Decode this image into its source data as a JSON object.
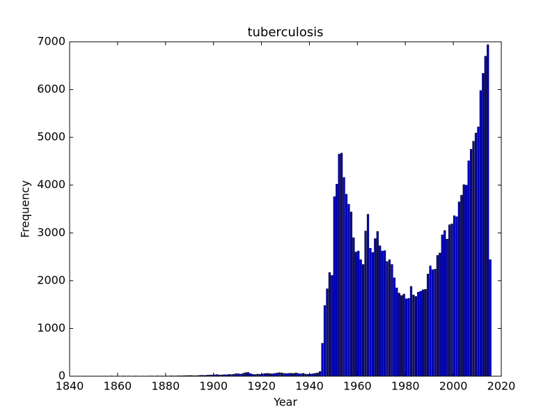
{
  "chart_data": {
    "type": "bar",
    "title": "tuberculosis",
    "x_label": "Year",
    "y_label": "Frequency",
    "color": "#0000c8",
    "edgecolor": "#000000",
    "grid": false,
    "xlim": [
      1840,
      2020
    ],
    "xticks": [
      1840,
      1860,
      1880,
      1900,
      1920,
      1940,
      1960,
      1980,
      2000,
      2020
    ],
    "ylim": [
      0,
      7000
    ],
    "yticks": [
      0,
      1000,
      2000,
      3000,
      4000,
      5000,
      6000,
      7000
    ],
    "x": [
      1850,
      1851,
      1852,
      1853,
      1854,
      1855,
      1856,
      1857,
      1858,
      1859,
      1860,
      1861,
      1862,
      1863,
      1864,
      1865,
      1866,
      1867,
      1868,
      1869,
      1870,
      1871,
      1872,
      1873,
      1874,
      1875,
      1876,
      1877,
      1878,
      1879,
      1880,
      1881,
      1882,
      1883,
      1884,
      1885,
      1886,
      1887,
      1888,
      1889,
      1890,
      1891,
      1892,
      1893,
      1894,
      1895,
      1896,
      1897,
      1898,
      1899,
      1900,
      1901,
      1902,
      1903,
      1904,
      1905,
      1906,
      1907,
      1908,
      1909,
      1910,
      1911,
      1912,
      1913,
      1914,
      1915,
      1916,
      1917,
      1918,
      1919,
      1920,
      1921,
      1922,
      1923,
      1924,
      1925,
      1926,
      1927,
      1928,
      1929,
      1930,
      1931,
      1932,
      1933,
      1934,
      1935,
      1936,
      1937,
      1938,
      1939,
      1940,
      1941,
      1942,
      1943,
      1944,
      1945,
      1946,
      1947,
      1948,
      1949,
      1950,
      1951,
      1952,
      1953,
      1954,
      1955,
      1956,
      1957,
      1958,
      1959,
      1960,
      1961,
      1962,
      1963,
      1964,
      1965,
      1966,
      1967,
      1968,
      1969,
      1970,
      1971,
      1972,
      1973,
      1974,
      1975,
      1976,
      1977,
      1978,
      1979,
      1980,
      1981,
      1982,
      1983,
      1984,
      1985,
      1986,
      1987,
      1988,
      1989,
      1990,
      1991,
      1992,
      1993,
      1994,
      1995,
      1996,
      1997,
      1998,
      1999,
      2000,
      2001,
      2002,
      2003,
      2004,
      2005,
      2006,
      2007,
      2008,
      2009,
      2010,
      2011,
      2012,
      2013,
      2014,
      2015
    ],
    "values": [
      0,
      0,
      0,
      3,
      5,
      2,
      4,
      6,
      3,
      2,
      4,
      3,
      6,
      2,
      5,
      4,
      3,
      6,
      4,
      3,
      5,
      4,
      3,
      6,
      5,
      4,
      7,
      5,
      6,
      4,
      6,
      5,
      8,
      6,
      7,
      9,
      8,
      10,
      12,
      14,
      15,
      12,
      10,
      14,
      18,
      20,
      17,
      22,
      25,
      24,
      30,
      35,
      28,
      26,
      32,
      30,
      38,
      35,
      40,
      55,
      50,
      45,
      60,
      75,
      80,
      55,
      40,
      35,
      45,
      40,
      50,
      55,
      60,
      55,
      50,
      58,
      65,
      75,
      70,
      60,
      55,
      60,
      62,
      58,
      70,
      55,
      50,
      60,
      45,
      40,
      45,
      50,
      60,
      70,
      100,
      690,
      1480,
      1830,
      2170,
      2110,
      3760,
      4020,
      4650,
      4670,
      4160,
      3810,
      3600,
      3440,
      2900,
      2600,
      2620,
      2440,
      2340,
      3040,
      3390,
      2680,
      2590,
      2880,
      3030,
      2730,
      2620,
      2630,
      2400,
      2440,
      2340,
      2060,
      1850,
      1740,
      1690,
      1720,
      1620,
      1630,
      1880,
      1700,
      1670,
      1760,
      1780,
      1810,
      1820,
      2140,
      2310,
      2230,
      2240,
      2530,
      2580,
      2960,
      3050,
      2870,
      3170,
      3190,
      3360,
      3340,
      3650,
      3790,
      4010,
      4000,
      4510,
      4750,
      4920,
      5090,
      5220,
      5980,
      6340,
      6700,
      6940,
      2440
    ]
  }
}
